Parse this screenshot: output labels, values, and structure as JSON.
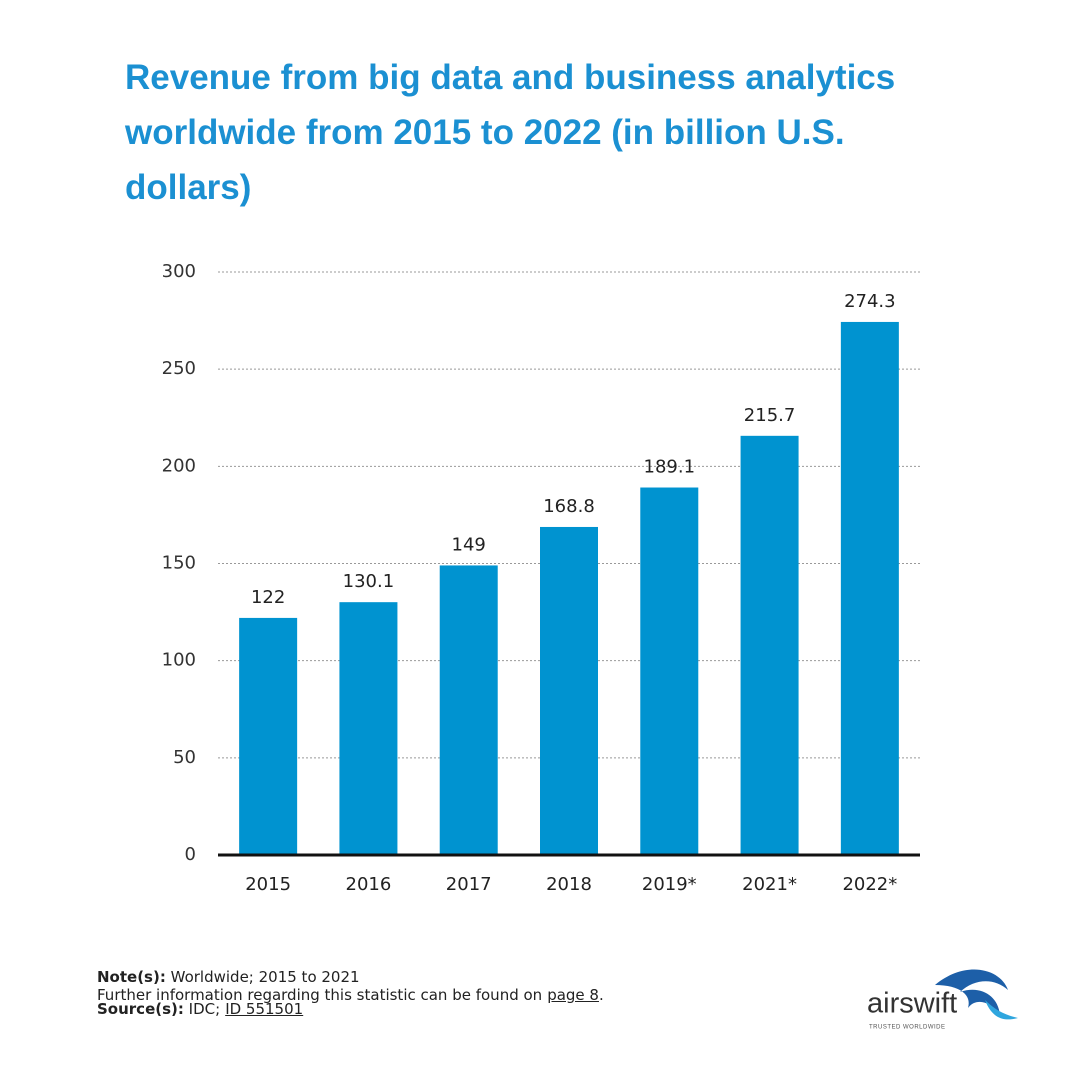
{
  "chart_data": {
    "type": "bar",
    "title": "Revenue from big data and business analytics worldwide from 2015 to 2022 (in billion U.S. dollars)",
    "categories": [
      "2015",
      "2016",
      "2017",
      "2018",
      "2019*",
      "2021*",
      "2022*"
    ],
    "values": [
      122,
      130.1,
      149,
      168.8,
      189.1,
      215.7,
      274.3
    ],
    "color": "#0093d0",
    "ylim": [
      0,
      300
    ],
    "yticks": [
      0,
      50,
      100,
      150,
      200,
      250,
      300
    ],
    "grid": true
  },
  "notes": {
    "note_label": "Note(s):",
    "note_text": "Worldwide;  2015 to 2021",
    "further_text": "Further information  regarding this statistic  can be found on",
    "further_link": "page 8",
    "further_end": ".",
    "source_label": "Source(s):",
    "source_text": "IDC;",
    "source_link": "ID 551501"
  },
  "logo": {
    "name": "airswift",
    "tagline": "TRUSTED WORLDWIDE"
  }
}
